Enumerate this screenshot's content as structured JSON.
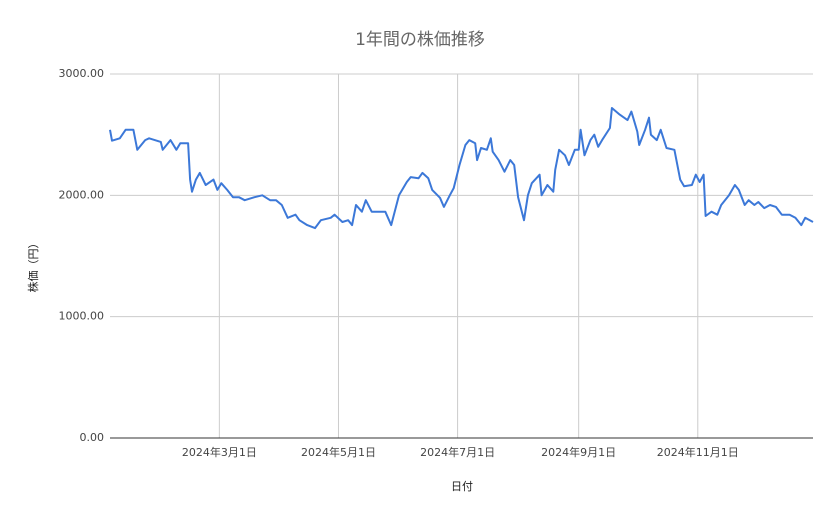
{
  "chart_data": {
    "type": "line",
    "title": "1年間の株価推移",
    "x_label": "日付",
    "y_label": "株価（円）",
    "x": [
      "2024-01-05",
      "2024-01-06",
      "2024-01-10",
      "2024-01-13",
      "2024-01-17",
      "2024-01-19",
      "2024-01-23",
      "2024-01-25",
      "2024-01-31",
      "2024-02-01",
      "2024-02-05",
      "2024-02-08",
      "2024-02-10",
      "2024-02-14",
      "2024-02-15",
      "2024-02-16",
      "2024-02-18",
      "2024-02-20",
      "2024-02-23",
      "2024-02-27",
      "2024-02-29",
      "2024-03-02",
      "2024-03-05",
      "2024-03-08",
      "2024-03-11",
      "2024-03-14",
      "2024-03-19",
      "2024-03-23",
      "2024-03-27",
      "2024-03-30",
      "2024-04-02",
      "2024-04-05",
      "2024-04-09",
      "2024-04-11",
      "2024-04-15",
      "2024-04-19",
      "2024-04-22",
      "2024-04-27",
      "2024-04-29",
      "2024-05-03",
      "2024-05-06",
      "2024-05-08",
      "2024-05-10",
      "2024-05-13",
      "2024-05-15",
      "2024-05-18",
      "2024-05-22",
      "2024-05-25",
      "2024-05-28",
      "2024-06-01",
      "2024-06-05",
      "2024-06-07",
      "2024-06-11",
      "2024-06-13",
      "2024-06-16",
      "2024-06-18",
      "2024-06-22",
      "2024-06-24",
      "2024-06-27",
      "2024-06-29",
      "2024-07-02",
      "2024-07-05",
      "2024-07-07",
      "2024-07-10",
      "2024-07-11",
      "2024-07-13",
      "2024-07-16",
      "2024-07-18",
      "2024-07-19",
      "2024-07-22",
      "2024-07-25",
      "2024-07-28",
      "2024-07-30",
      "2024-08-01",
      "2024-08-04",
      "2024-08-06",
      "2024-08-08",
      "2024-08-12",
      "2024-08-13",
      "2024-08-16",
      "2024-08-19",
      "2024-08-20",
      "2024-08-22",
      "2024-08-25",
      "2024-08-27",
      "2024-08-30",
      "2024-09-01",
      "2024-09-02",
      "2024-09-04",
      "2024-09-07",
      "2024-09-09",
      "2024-09-11",
      "2024-09-13",
      "2024-09-17",
      "2024-09-18",
      "2024-09-22",
      "2024-09-26",
      "2024-09-28",
      "2024-10-01",
      "2024-10-02",
      "2024-10-05",
      "2024-10-07",
      "2024-10-08",
      "2024-10-11",
      "2024-10-13",
      "2024-10-16",
      "2024-10-20",
      "2024-10-23",
      "2024-10-25",
      "2024-10-29",
      "2024-10-31",
      "2024-11-02",
      "2024-11-04",
      "2024-11-05",
      "2024-11-08",
      "2024-11-11",
      "2024-11-13",
      "2024-11-17",
      "2024-11-20",
      "2024-11-22",
      "2024-11-25",
      "2024-11-27",
      "2024-11-30",
      "2024-12-02",
      "2024-12-05",
      "2024-12-08",
      "2024-12-11",
      "2024-12-14",
      "2024-12-18",
      "2024-12-21",
      "2024-12-24",
      "2024-12-26",
      "2024-12-30"
    ],
    "series": [
      {
        "name": "株価",
        "color": "#3c78d8",
        "values": [
          2540,
          2450,
          2470,
          2540,
          2540,
          2375,
          2455,
          2470,
          2440,
          2375,
          2455,
          2375,
          2430,
          2430,
          2130,
          2030,
          2130,
          2185,
          2085,
          2130,
          2045,
          2100,
          2045,
          1985,
          1985,
          1960,
          1985,
          2000,
          1960,
          1960,
          1920,
          1815,
          1840,
          1795,
          1755,
          1730,
          1795,
          1815,
          1840,
          1780,
          1795,
          1755,
          1920,
          1865,
          1960,
          1865,
          1865,
          1865,
          1755,
          2000,
          2110,
          2150,
          2140,
          2185,
          2140,
          2045,
          1980,
          1905,
          2000,
          2060,
          2250,
          2415,
          2455,
          2430,
          2290,
          2390,
          2375,
          2470,
          2360,
          2290,
          2195,
          2290,
          2250,
          1985,
          1795,
          2000,
          2100,
          2170,
          2000,
          2085,
          2030,
          2210,
          2375,
          2330,
          2250,
          2375,
          2375,
          2540,
          2330,
          2455,
          2500,
          2400,
          2455,
          2555,
          2720,
          2665,
          2620,
          2690,
          2525,
          2415,
          2540,
          2640,
          2500,
          2455,
          2540,
          2390,
          2375,
          2130,
          2075,
          2085,
          2170,
          2110,
          2170,
          1830,
          1865,
          1840,
          1920,
          2000,
          2085,
          2045,
          1920,
          1960,
          1920,
          1945,
          1895,
          1920,
          1905,
          1840,
          1840,
          1815,
          1755,
          1815,
          1780
        ]
      }
    ],
    "xlim": [
      "2024-01-05",
      "2024-12-30"
    ],
    "xticks": [
      {
        "value": "2024-03-01",
        "label": "2024年3月1日"
      },
      {
        "value": "2024-05-01",
        "label": "2024年5月1日"
      },
      {
        "value": "2024-07-01",
        "label": "2024年7月1日"
      },
      {
        "value": "2024-09-01",
        "label": "2024年9月1日"
      },
      {
        "value": "2024-11-01",
        "label": "2024年11月1日"
      }
    ],
    "ylim": [
      0,
      3000
    ],
    "yticks": [
      {
        "value": 0,
        "label": "0.00"
      },
      {
        "value": 1000,
        "label": "1000.00"
      },
      {
        "value": 2000,
        "label": "2000.00"
      },
      {
        "value": 3000,
        "label": "3000.00"
      }
    ],
    "grid": true
  }
}
